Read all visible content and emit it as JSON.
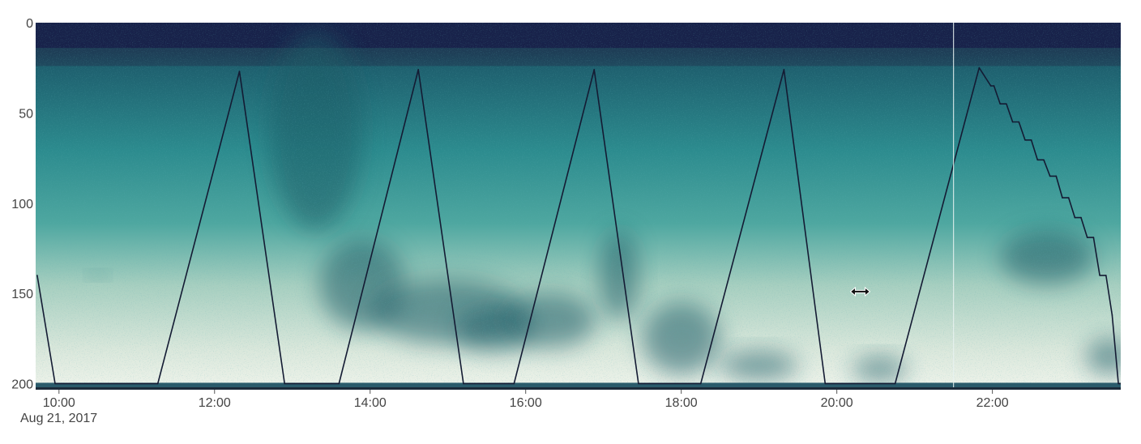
{
  "chart_data": {
    "type": "heatmap",
    "description_units": {
      "x": "time of day (hours)",
      "y": "depth"
    },
    "title": "",
    "xlabel": "",
    "ylabel": "",
    "date_label": "Aug 21, 2017",
    "x_range": [
      9.7,
      23.65
    ],
    "y_range": [
      0,
      202
    ],
    "y_inverted": true,
    "x_ticks": [
      {
        "value": 10,
        "label": "10:00"
      },
      {
        "value": 12,
        "label": "12:00"
      },
      {
        "value": 14,
        "label": "14:00"
      },
      {
        "value": 16,
        "label": "16:00"
      },
      {
        "value": 18,
        "label": "18:00"
      },
      {
        "value": 20,
        "label": "20:00"
      },
      {
        "value": 22,
        "label": "22:00"
      }
    ],
    "y_ticks": [
      {
        "value": 0,
        "label": "0"
      },
      {
        "value": 50,
        "label": "50"
      },
      {
        "value": 100,
        "label": "100"
      },
      {
        "value": 150,
        "label": "150"
      },
      {
        "value": 200,
        "label": "200"
      }
    ],
    "colors": {
      "surface": "#18224a",
      "upper": "#1e5f6e",
      "mid": "#2c8b8e",
      "lower": "#8fc2b0",
      "bottom": "#e9f0e6",
      "dark_patch": "#1b5c66",
      "track": "#141b33",
      "cursor_line": "#e8f3f1"
    },
    "profile_track": [
      [
        9.72,
        140
      ],
      [
        9.95,
        200
      ],
      [
        11.27,
        200
      ],
      [
        12.32,
        27
      ],
      [
        12.9,
        200
      ],
      [
        13.6,
        200
      ],
      [
        14.62,
        26
      ],
      [
        15.2,
        200
      ],
      [
        15.85,
        200
      ],
      [
        16.88,
        26
      ],
      [
        17.45,
        200
      ],
      [
        18.25,
        200
      ],
      [
        19.32,
        26
      ],
      [
        19.85,
        200
      ],
      [
        20.75,
        200
      ],
      [
        21.83,
        25
      ],
      [
        21.98,
        35
      ],
      [
        22.02,
        35
      ],
      [
        22.1,
        45
      ],
      [
        22.18,
        45
      ],
      [
        22.26,
        55
      ],
      [
        22.34,
        55
      ],
      [
        22.42,
        65
      ],
      [
        22.5,
        65
      ],
      [
        22.58,
        76
      ],
      [
        22.66,
        76
      ],
      [
        22.74,
        85
      ],
      [
        22.82,
        85
      ],
      [
        22.9,
        97
      ],
      [
        22.98,
        97
      ],
      [
        23.06,
        108
      ],
      [
        23.14,
        108
      ],
      [
        23.22,
        119
      ],
      [
        23.3,
        119
      ],
      [
        23.38,
        140
      ],
      [
        23.46,
        140
      ],
      [
        23.54,
        162
      ],
      [
        23.62,
        200
      ],
      [
        23.65,
        200
      ]
    ],
    "dark_patches": [
      {
        "x": 13.3,
        "y": 60,
        "rx": 0.6,
        "ry": 55
      },
      {
        "x": 13.9,
        "y": 145,
        "rx": 0.55,
        "ry": 25
      },
      {
        "x": 15.0,
        "y": 160,
        "rx": 1.0,
        "ry": 18
      },
      {
        "x": 15.6,
        "y": 170,
        "rx": 0.5,
        "ry": 12
      },
      {
        "x": 16.3,
        "y": 165,
        "rx": 0.6,
        "ry": 15
      },
      {
        "x": 17.2,
        "y": 140,
        "rx": 0.25,
        "ry": 25
      },
      {
        "x": 18.0,
        "y": 175,
        "rx": 0.5,
        "ry": 20
      },
      {
        "x": 19.0,
        "y": 190,
        "rx": 0.5,
        "ry": 8
      },
      {
        "x": 20.55,
        "y": 192,
        "rx": 0.35,
        "ry": 7
      },
      {
        "x": 22.7,
        "y": 130,
        "rx": 0.6,
        "ry": 15
      },
      {
        "x": 23.5,
        "y": 185,
        "rx": 0.3,
        "ry": 10
      },
      {
        "x": 10.5,
        "y": 140,
        "rx": 0.1,
        "ry": 2
      }
    ],
    "cursor_time": 21.5,
    "pointer_position": {
      "x": 20.3,
      "y": 149
    }
  }
}
